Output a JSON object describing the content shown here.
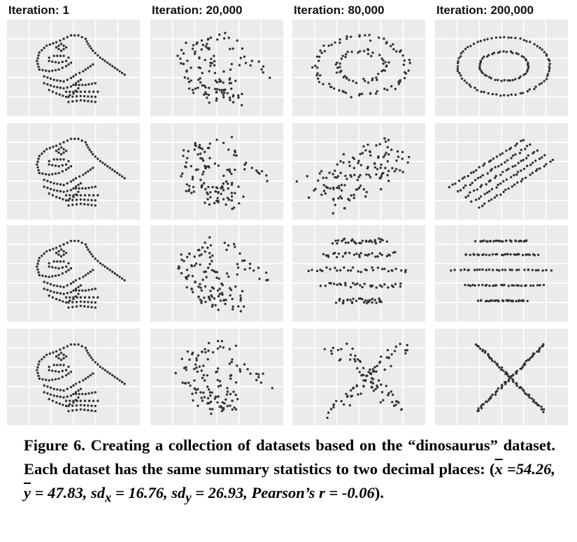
{
  "chart_data": {
    "type": "scatter",
    "columns": [
      "Iteration: 1",
      "Iteration: 20,000",
      "Iteration: 80,000",
      "Iteration: 200,000"
    ],
    "rows": [
      "circle",
      "slant lines",
      "horizontal lines",
      "x shape"
    ],
    "xlim": [
      0,
      100
    ],
    "ylim": [
      0,
      100
    ],
    "grid": true,
    "point_color": "#333333",
    "panel_bg": "#ebebeb"
  },
  "caption": {
    "lead": "Figure 6. Creating a collection of datasets based on the “dinosaurus” dataset. Each dataset has the same summary statistics to two decimal places: (",
    "xbar": "x",
    "xbar_val": " =54.26, ",
    "ybar": "y",
    "ybar_val": " = 47.83, sd",
    "sdx_sub": "x",
    "sdx_val": " = 16.76, sd",
    "sdy_sub": "y",
    "sdy_val": " = 26.93, Pearson’s r = -0.06",
    "tail": ")."
  }
}
